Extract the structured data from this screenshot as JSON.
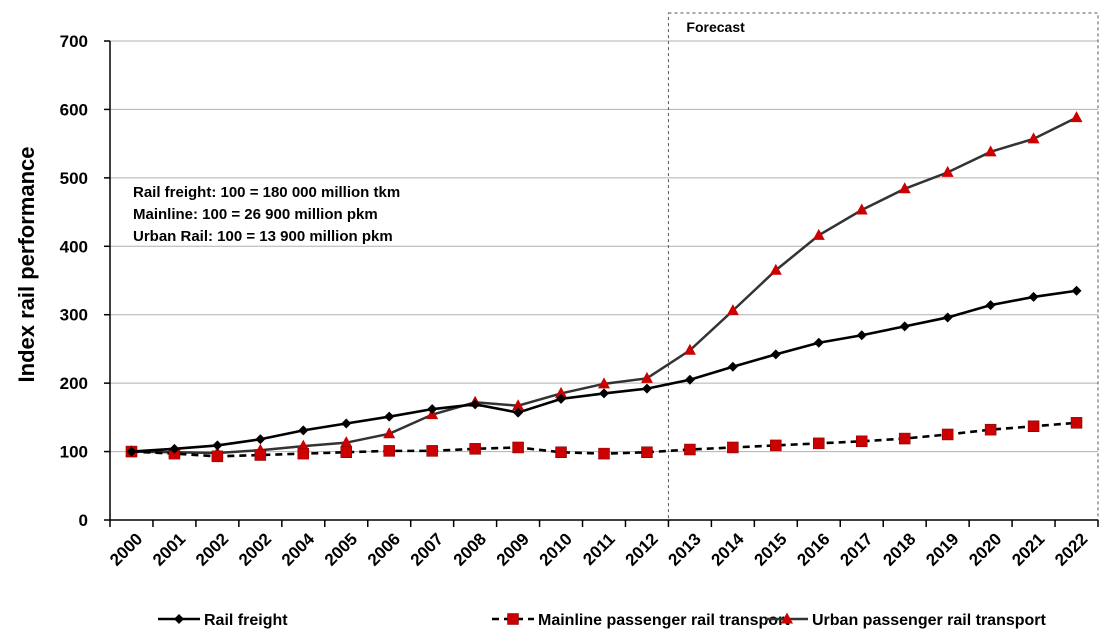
{
  "chart_data": {
    "type": "line",
    "title": "",
    "xlabel": "",
    "ylabel": "Index rail performance",
    "ylim": [
      0,
      700
    ],
    "yticks": [
      0,
      100,
      200,
      300,
      400,
      500,
      600,
      700
    ],
    "grid": "horizontal",
    "categories": [
      "2000",
      "2001",
      "2002",
      "2002",
      "2004",
      "2005",
      "2006",
      "2007",
      "2008",
      "2009",
      "2010",
      "2011",
      "2012",
      "2013",
      "2014",
      "2015",
      "2016",
      "2017",
      "2018",
      "2019",
      "2020",
      "2021",
      "2022"
    ],
    "forecast_label": "Forecast",
    "forecast_start_index": 13,
    "notes": [
      "Rail freight: 100 = 180 000 million tkm",
      "Mainline: 100 = 26 900 million pkm",
      "Urban Rail: 100 = 13 900 million pkm"
    ],
    "legend_position": "bottom",
    "series": [
      {
        "name": "Rail freight",
        "color": "#000000",
        "marker": "diamond",
        "line": "solid",
        "values": [
          100,
          104,
          109,
          118,
          131,
          141,
          151,
          162,
          169,
          157,
          177,
          185,
          192,
          205,
          224,
          242,
          259,
          270,
          283,
          296,
          314,
          326,
          335
        ]
      },
      {
        "name": "Mainline passenger rail transport",
        "color": "#cc0000",
        "marker": "square",
        "line": "dashed",
        "values": [
          100,
          97,
          93,
          95,
          97,
          99,
          101,
          101,
          104,
          106,
          99,
          97,
          99,
          103,
          106,
          109,
          112,
          115,
          119,
          125,
          132,
          137,
          142
        ]
      },
      {
        "name": "Urban passenger rail transport",
        "color": "#cc0000",
        "marker": "triangle",
        "line": "solid",
        "values": [
          100,
          99,
          98,
          102,
          108,
          113,
          126,
          154,
          172,
          167,
          185,
          199,
          207,
          248,
          306,
          365,
          416,
          453,
          484,
          508,
          538,
          557,
          588
        ]
      }
    ]
  }
}
